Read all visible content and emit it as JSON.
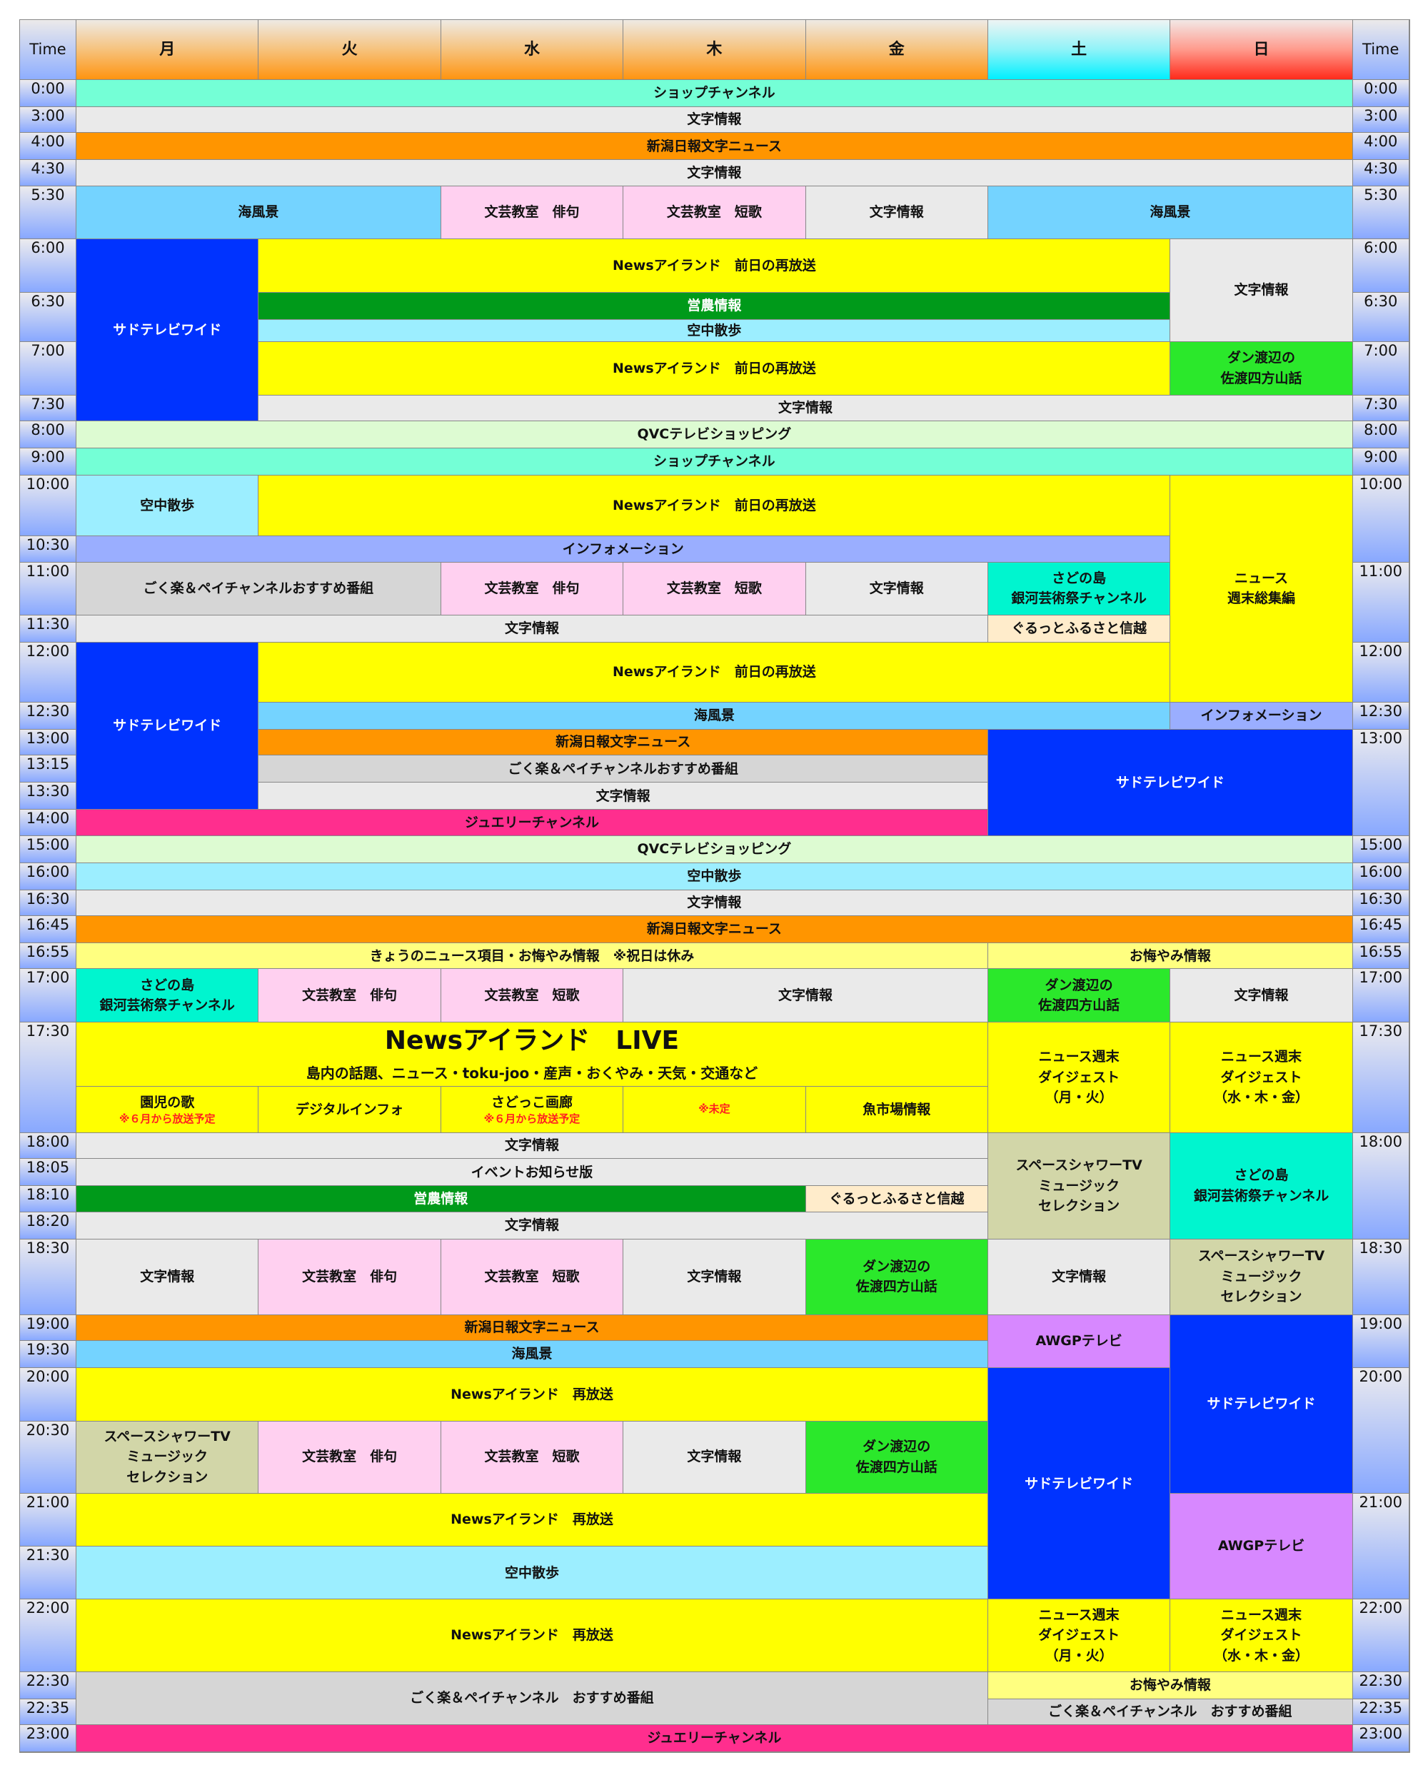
{
  "header": {
    "time_label": "Time",
    "days": [
      "月",
      "火",
      "水",
      "木",
      "金",
      "土",
      "日"
    ]
  },
  "colors": {
    "mint": "#74FFD6",
    "gray": "#EAEAEA",
    "orange": "#FF9500",
    "sky": "#74D3FF",
    "pink": "#FFD0F0",
    "blue": "#0033FF",
    "yellow": "#FFFF00",
    "green": "#009A1A",
    "aqua": "#9CEEFF",
    "lime": "#2BE82B",
    "qvc": "#DDFBD2",
    "info": "#9AAEFF",
    "silver": "#D6D6D6",
    "teal": "#00F5CF",
    "cream": "#FFECCB",
    "jewel": "#FF2E8E",
    "olive": "#D2D6A8",
    "violet": "#D788FF",
    "paleyellow": "#FFFF80"
  },
  "left_times": [
    "0:00",
    "3:00",
    "4:00",
    "4:30",
    "5:30",
    "6:00",
    "6:30",
    "7:00",
    "7:30",
    "8:00",
    "9:00",
    "10:00",
    "10:30",
    "11:00",
    "11:30",
    "12:00",
    "12:30",
    "13:00",
    "13:15",
    "13:30",
    "14:00",
    "15:00",
    "16:00",
    "16:30",
    "16:45",
    "16:55",
    "17:00",
    "17:30",
    "18:00",
    "18:05",
    "18:10",
    "18:20",
    "18:30",
    "19:00",
    "19:30",
    "20:00",
    "20:30",
    "21:00",
    "21:30",
    "22:00",
    "22:30",
    "22:35",
    "23:00"
  ],
  "right_times": [
    "0:00",
    "3:00",
    "4:00",
    "4:30",
    "5:30",
    "6:00",
    "6:30",
    "7:00",
    "7:30",
    "8:00",
    "9:00",
    "10:00",
    "11:00",
    "12:00",
    "12:30",
    "13:00",
    "15:00",
    "16:00",
    "16:30",
    "16:45",
    "16:55",
    "17:00",
    "17:30",
    "18:00",
    "18:30",
    "19:00",
    "20:00",
    "21:00",
    "22:00",
    "22:30",
    "22:35",
    "23:00"
  ],
  "programs": [
    {
      "d": [
        "月",
        "日"
      ],
      "start": "0:00",
      "end": "3:00",
      "title": "ショップチャンネル",
      "color": "mint"
    },
    {
      "d": [
        "月",
        "日"
      ],
      "start": "3:00",
      "end": "4:00",
      "title": "文字情報",
      "color": "gray"
    },
    {
      "d": [
        "月",
        "日"
      ],
      "start": "4:00",
      "end": "4:30",
      "title": "新潟日報文字ニュース",
      "color": "orange"
    },
    {
      "d": [
        "月",
        "日"
      ],
      "start": "4:30",
      "end": "5:30",
      "title": "文字情報",
      "color": "gray"
    },
    {
      "d": [
        "月",
        "火"
      ],
      "start": "5:30",
      "end": "6:00",
      "title": "海風景",
      "color": "sky"
    },
    {
      "d": [
        "水",
        "水"
      ],
      "start": "5:30",
      "end": "6:00",
      "title": "文芸教室　俳句",
      "color": "pink"
    },
    {
      "d": [
        "木",
        "木"
      ],
      "start": "5:30",
      "end": "6:00",
      "title": "文芸教室　短歌",
      "color": "pink"
    },
    {
      "d": [
        "金",
        "金"
      ],
      "start": "5:30",
      "end": "6:00",
      "title": "文字情報",
      "color": "gray"
    },
    {
      "d": [
        "土",
        "日"
      ],
      "start": "5:30",
      "end": "6:00",
      "title": "海風景",
      "color": "sky"
    },
    {
      "d": [
        "月",
        "月"
      ],
      "start": "6:00",
      "end": "8:00",
      "title": "サドテレビワイド",
      "color": "blue",
      "light": true
    },
    {
      "d": [
        "火",
        "土"
      ],
      "start": "6:00",
      "end": "6:30",
      "title": "Newsアイランド　前日の再放送",
      "color": "yellow"
    },
    {
      "d": [
        "日",
        "日"
      ],
      "start": "6:00",
      "end": "7:00",
      "title": "文字情報",
      "color": "gray"
    },
    {
      "d": [
        "火",
        "土"
      ],
      "start": "6:30",
      "end": "6:45",
      "title": "営農情報",
      "color": "green",
      "light": true
    },
    {
      "d": [
        "火",
        "土"
      ],
      "start": "6:45",
      "end": "7:00",
      "title": "空中散歩",
      "color": "aqua"
    },
    {
      "d": [
        "火",
        "土"
      ],
      "start": "7:00",
      "end": "7:30",
      "title": "Newsアイランド　前日の再放送",
      "color": "yellow"
    },
    {
      "d": [
        "日",
        "日"
      ],
      "start": "7:00",
      "end": "7:30",
      "title": "ダン渡辺の\n佐渡四方山話",
      "color": "lime"
    },
    {
      "d": [
        "火",
        "日"
      ],
      "start": "7:30",
      "end": "8:00",
      "title": "文字情報",
      "color": "gray"
    },
    {
      "d": [
        "月",
        "日"
      ],
      "start": "8:00",
      "end": "9:00",
      "title": "QVCテレビショッピング",
      "color": "qvc"
    },
    {
      "d": [
        "月",
        "日"
      ],
      "start": "9:00",
      "end": "10:00",
      "title": "ショップチャンネル",
      "color": "mint"
    },
    {
      "d": [
        "月",
        "月"
      ],
      "start": "10:00",
      "end": "10:30",
      "title": "空中散歩",
      "color": "aqua"
    },
    {
      "d": [
        "火",
        "土"
      ],
      "start": "10:00",
      "end": "10:30",
      "title": "Newsアイランド　前日の再放送",
      "color": "yellow"
    },
    {
      "d": [
        "日",
        "日"
      ],
      "start": "10:00",
      "end": "12:30",
      "title": "ニュース\n週末総集編",
      "color": "yellow"
    },
    {
      "d": [
        "月",
        "土"
      ],
      "start": "10:30",
      "end": "11:00",
      "title": "インフォメーション",
      "color": "info"
    },
    {
      "d": [
        "月",
        "火"
      ],
      "start": "11:00",
      "end": "11:30",
      "title": "ごく楽＆ペイチャンネルおすすめ番組",
      "color": "silver"
    },
    {
      "d": [
        "水",
        "水"
      ],
      "start": "11:00",
      "end": "11:30",
      "title": "文芸教室　俳句",
      "color": "pink"
    },
    {
      "d": [
        "木",
        "木"
      ],
      "start": "11:00",
      "end": "11:30",
      "title": "文芸教室　短歌",
      "color": "pink"
    },
    {
      "d": [
        "金",
        "金"
      ],
      "start": "11:00",
      "end": "11:30",
      "title": "文字情報",
      "color": "gray"
    },
    {
      "d": [
        "土",
        "土"
      ],
      "start": "11:00",
      "end": "11:30",
      "title": "さどの島\n銀河芸術祭チャンネル",
      "color": "teal"
    },
    {
      "d": [
        "月",
        "金"
      ],
      "start": "11:30",
      "end": "12:00",
      "title": "文字情報",
      "color": "gray"
    },
    {
      "d": [
        "土",
        "土"
      ],
      "start": "11:30",
      "end": "12:00",
      "title": "ぐるっとふるさと信越",
      "color": "cream"
    },
    {
      "d": [
        "月",
        "月"
      ],
      "start": "12:00",
      "end": "14:00",
      "title": "サドテレビワイド",
      "color": "blue",
      "light": true
    },
    {
      "d": [
        "火",
        "土"
      ],
      "start": "12:00",
      "end": "12:30",
      "title": "Newsアイランド　前日の再放送",
      "color": "yellow"
    },
    {
      "d": [
        "火",
        "土"
      ],
      "start": "12:30",
      "end": "13:00",
      "title": "海風景",
      "color": "sky"
    },
    {
      "d": [
        "日",
        "日"
      ],
      "start": "12:30",
      "end": "13:00",
      "title": "インフォメーション",
      "color": "info"
    },
    {
      "d": [
        "火",
        "金"
      ],
      "start": "13:00",
      "end": "13:15",
      "title": "新潟日報文字ニュース",
      "color": "orange"
    },
    {
      "d": [
        "土",
        "日"
      ],
      "start": "13:00",
      "end": "15:00",
      "title": "サドテレビワイド",
      "color": "blue",
      "light": true
    },
    {
      "d": [
        "火",
        "金"
      ],
      "start": "13:15",
      "end": "13:30",
      "title": "ごく楽＆ペイチャンネルおすすめ番組",
      "color": "silver"
    },
    {
      "d": [
        "火",
        "金"
      ],
      "start": "13:30",
      "end": "14:00",
      "title": "文字情報",
      "color": "gray"
    },
    {
      "d": [
        "月",
        "金"
      ],
      "start": "14:00",
      "end": "15:00",
      "title": "ジュエリーチャンネル",
      "color": "jewel"
    },
    {
      "d": [
        "月",
        "日"
      ],
      "start": "15:00",
      "end": "16:00",
      "title": "QVCテレビショッピング",
      "color": "qvc"
    },
    {
      "d": [
        "月",
        "日"
      ],
      "start": "16:00",
      "end": "16:30",
      "title": "空中散歩",
      "color": "aqua"
    },
    {
      "d": [
        "月",
        "日"
      ],
      "start": "16:30",
      "end": "16:45",
      "title": "文字情報",
      "color": "gray"
    },
    {
      "d": [
        "月",
        "日"
      ],
      "start": "16:45",
      "end": "16:55",
      "title": "新潟日報文字ニュース",
      "color": "orange"
    },
    {
      "d": [
        "月",
        "金"
      ],
      "start": "16:55",
      "end": "17:00",
      "title": "きょうのニュース項目・お悔やみ情報　※祝日は休み",
      "color": "paleyellow"
    },
    {
      "d": [
        "土",
        "日"
      ],
      "start": "16:55",
      "end": "17:00",
      "title": "お悔やみ情報",
      "color": "paleyellow"
    },
    {
      "d": [
        "月",
        "月"
      ],
      "start": "17:00",
      "end": "17:30",
      "title": "さどの島\n銀河芸術祭チャンネル",
      "color": "teal"
    },
    {
      "d": [
        "火",
        "火"
      ],
      "start": "17:00",
      "end": "17:30",
      "title": "文芸教室　俳句",
      "color": "pink"
    },
    {
      "d": [
        "水",
        "水"
      ],
      "start": "17:00",
      "end": "17:30",
      "title": "文芸教室　短歌",
      "color": "pink"
    },
    {
      "d": [
        "木",
        "金"
      ],
      "start": "17:00",
      "end": "17:30",
      "title": "文字情報",
      "color": "gray"
    },
    {
      "d": [
        "土",
        "土"
      ],
      "start": "17:00",
      "end": "17:30",
      "title": "ダン渡辺の\n佐渡四方山話",
      "color": "lime"
    },
    {
      "d": [
        "日",
        "日"
      ],
      "start": "17:00",
      "end": "17:30",
      "title": "文字情報",
      "color": "gray"
    },
    {
      "d": [
        "月",
        "金"
      ],
      "start": "17:30",
      "end": "17:45",
      "title": "Newsアイランド　LIVE",
      "subtitle": "島内の話題、ニュース・toku-joo・産声・おくやみ・天気・交通など",
      "color": "yellow",
      "live": true
    },
    {
      "d": [
        "月",
        "月"
      ],
      "start": "17:45",
      "end": "18:00",
      "title": "園児の歌",
      "note": "※６月から放送予定",
      "color": "yellow"
    },
    {
      "d": [
        "火",
        "火"
      ],
      "start": "17:45",
      "end": "18:00",
      "title": "デジタルインフォ",
      "color": "yellow"
    },
    {
      "d": [
        "水",
        "水"
      ],
      "start": "17:45",
      "end": "18:00",
      "title": "さどっこ画廊",
      "note": "※６月から放送予定",
      "color": "yellow"
    },
    {
      "d": [
        "木",
        "木"
      ],
      "start": "17:45",
      "end": "18:00",
      "title": "",
      "note": "※未定",
      "color": "yellow"
    },
    {
      "d": [
        "金",
        "金"
      ],
      "start": "17:45",
      "end": "18:00",
      "title": "魚市場情報",
      "color": "yellow"
    },
    {
      "d": [
        "土",
        "土"
      ],
      "start": "17:30",
      "end": "18:00",
      "title": "ニュース週末\nダイジェスト\n（月・火）",
      "color": "yellow"
    },
    {
      "d": [
        "日",
        "日"
      ],
      "start": "17:30",
      "end": "18:00",
      "title": "ニュース週末\nダイジェスト\n（水・木・金）",
      "color": "yellow"
    },
    {
      "d": [
        "月",
        "金"
      ],
      "start": "18:00",
      "end": "18:05",
      "title": "文字情報",
      "color": "gray"
    },
    {
      "d": [
        "月",
        "金"
      ],
      "start": "18:05",
      "end": "18:10",
      "title": "イベントお知らせ版",
      "color": "gray"
    },
    {
      "d": [
        "月",
        "木"
      ],
      "start": "18:10",
      "end": "18:20",
      "title": "営農情報",
      "color": "green",
      "light": true
    },
    {
      "d": [
        "金",
        "金"
      ],
      "start": "18:10",
      "end": "18:20",
      "title": "ぐるっとふるさと信越",
      "color": "cream"
    },
    {
      "d": [
        "月",
        "金"
      ],
      "start": "18:20",
      "end": "18:30",
      "title": "文字情報",
      "color": "gray"
    },
    {
      "d": [
        "土",
        "土"
      ],
      "start": "18:00",
      "end": "18:30",
      "title": "スペースシャワーTV\nミュージック\nセレクション",
      "color": "olive"
    },
    {
      "d": [
        "日",
        "日"
      ],
      "start": "18:00",
      "end": "18:30",
      "title": "さどの島\n銀河芸術祭チャンネル",
      "color": "teal"
    },
    {
      "d": [
        "月",
        "月"
      ],
      "start": "18:30",
      "end": "19:00",
      "title": "文字情報",
      "color": "gray"
    },
    {
      "d": [
        "火",
        "火"
      ],
      "start": "18:30",
      "end": "19:00",
      "title": "文芸教室　俳句",
      "color": "pink"
    },
    {
      "d": [
        "水",
        "水"
      ],
      "start": "18:30",
      "end": "19:00",
      "title": "文芸教室　短歌",
      "color": "pink"
    },
    {
      "d": [
        "木",
        "木"
      ],
      "start": "18:30",
      "end": "19:00",
      "title": "文字情報",
      "color": "gray"
    },
    {
      "d": [
        "金",
        "金"
      ],
      "start": "18:30",
      "end": "19:00",
      "title": "ダン渡辺の\n佐渡四方山話",
      "color": "lime"
    },
    {
      "d": [
        "土",
        "土"
      ],
      "start": "18:30",
      "end": "19:00",
      "title": "文字情報",
      "color": "gray"
    },
    {
      "d": [
        "日",
        "日"
      ],
      "start": "18:30",
      "end": "19:00",
      "title": "スペースシャワーTV\nミュージック\nセレクション",
      "color": "olive"
    },
    {
      "d": [
        "月",
        "金"
      ],
      "start": "19:00",
      "end": "19:30",
      "title": "新潟日報文字ニュース",
      "color": "orange"
    },
    {
      "d": [
        "土",
        "土"
      ],
      "start": "19:00",
      "end": "20:00",
      "title": "AWGPテレビ",
      "color": "violet"
    },
    {
      "d": [
        "日",
        "日"
      ],
      "start": "19:00",
      "end": "21:00",
      "title": "サドテレビワイド",
      "color": "blue",
      "light": true
    },
    {
      "d": [
        "月",
        "金"
      ],
      "start": "19:30",
      "end": "20:00",
      "title": "海風景",
      "color": "sky"
    },
    {
      "d": [
        "月",
        "金"
      ],
      "start": "20:00",
      "end": "20:30",
      "title": "Newsアイランド　再放送",
      "color": "yellow"
    },
    {
      "d": [
        "土",
        "土"
      ],
      "start": "20:00",
      "end": "22:00",
      "title": "サドテレビワイド",
      "color": "blue",
      "light": true
    },
    {
      "d": [
        "月",
        "月"
      ],
      "start": "20:30",
      "end": "21:00",
      "title": "スペースシャワーTV\nミュージック\nセレクション",
      "color": "olive"
    },
    {
      "d": [
        "火",
        "火"
      ],
      "start": "20:30",
      "end": "21:00",
      "title": "文芸教室　俳句",
      "color": "pink"
    },
    {
      "d": [
        "水",
        "水"
      ],
      "start": "20:30",
      "end": "21:00",
      "title": "文芸教室　短歌",
      "color": "pink"
    },
    {
      "d": [
        "木",
        "木"
      ],
      "start": "20:30",
      "end": "21:00",
      "title": "文字情報",
      "color": "gray"
    },
    {
      "d": [
        "金",
        "金"
      ],
      "start": "20:30",
      "end": "21:00",
      "title": "ダン渡辺の\n佐渡四方山話",
      "color": "lime"
    },
    {
      "d": [
        "日",
        "日"
      ],
      "start": "21:00",
      "end": "22:00",
      "title": "AWGPテレビ",
      "color": "violet"
    },
    {
      "d": [
        "月",
        "金"
      ],
      "start": "21:00",
      "end": "21:30",
      "title": "Newsアイランド　再放送",
      "color": "yellow"
    },
    {
      "d": [
        "月",
        "金"
      ],
      "start": "21:30",
      "end": "22:00",
      "title": "空中散歩",
      "color": "aqua"
    },
    {
      "d": [
        "月",
        "金"
      ],
      "start": "22:00",
      "end": "22:30",
      "title": "Newsアイランド　再放送",
      "color": "yellow"
    },
    {
      "d": [
        "土",
        "土"
      ],
      "start": "22:00",
      "end": "22:30",
      "title": "ニュース週末\nダイジェスト\n（月・火）",
      "color": "yellow"
    },
    {
      "d": [
        "日",
        "日"
      ],
      "start": "22:00",
      "end": "22:30",
      "title": "ニュース週末\nダイジェスト\n（水・木・金）",
      "color": "yellow"
    },
    {
      "d": [
        "月",
        "金"
      ],
      "start": "22:30",
      "end": "23:00",
      "title": "ごく楽＆ペイチャンネル　おすすめ番組",
      "color": "silver"
    },
    {
      "d": [
        "土",
        "日"
      ],
      "start": "22:30",
      "end": "22:35",
      "title": "お悔やみ情報",
      "color": "paleyellow"
    },
    {
      "d": [
        "土",
        "日"
      ],
      "start": "22:35",
      "end": "23:00",
      "title": "ごく楽＆ペイチャンネル　おすすめ番組",
      "color": "silver"
    },
    {
      "d": [
        "月",
        "日"
      ],
      "start": "23:00",
      "title": "ジュエリーチャンネル",
      "color": "jewel"
    }
  ]
}
